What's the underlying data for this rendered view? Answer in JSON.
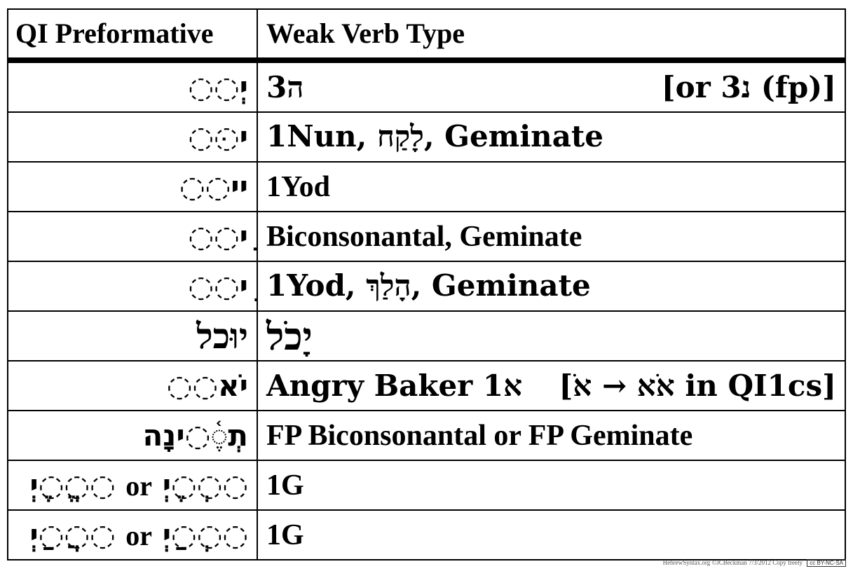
{
  "header": {
    "col1": "QI Preformative",
    "col2": "Weak Verb Type"
  },
  "rows": [
    {
      "pre": "ִיְ◌◌",
      "type_left": "3ה",
      "type_right": "[or 3נ (fp)]"
    },
    {
      "pre": "ִי◌ּ◌",
      "type_left": "1Nun, לָקַח, Geminate",
      "type_right": ""
    },
    {
      "pre": "ִיי◌◌",
      "type_left": "1Yod",
      "type_right": ""
    },
    {
      "pre": "ָי◌◌",
      "type_left": "Biconsonantal, Geminate",
      "type_right": ""
    },
    {
      "pre": "ֵי◌◌",
      "type_left": "1Yod, הָלַךְ, Geminate",
      "type_right": ""
    },
    {
      "pre": "יוּכל",
      "type_left": "יָכֹל",
      "type_right": ""
    },
    {
      "pre": "יֹא◌◌",
      "type_left": "Angry Baker 1א",
      "type_right": "[אֹא → אֹ in QI1cs]"
    },
    {
      "pre": "תְ◌ֶ֫◌ינָה",
      "type_left": "FP Biconsonantal or FP Geminate",
      "type_right": ""
    },
    {
      "pre_a": "◌◌ֱ◌ֶיְ",
      "pre_or": "or",
      "pre_b": "◌◌ְ◌ֶיְ",
      "type_left": "1G",
      "type_right": ""
    },
    {
      "pre_a": "◌◌ֲ◌ַיְ",
      "pre_or": "or",
      "pre_b": "◌◌ְ◌ַיְ",
      "type_left": "1G",
      "type_right": ""
    }
  ],
  "credit": {
    "text": "HebrewSyntax.org ©JCBeckman 7/3/2012 Copy freely",
    "badge": "cc BY-NC-SA"
  }
}
